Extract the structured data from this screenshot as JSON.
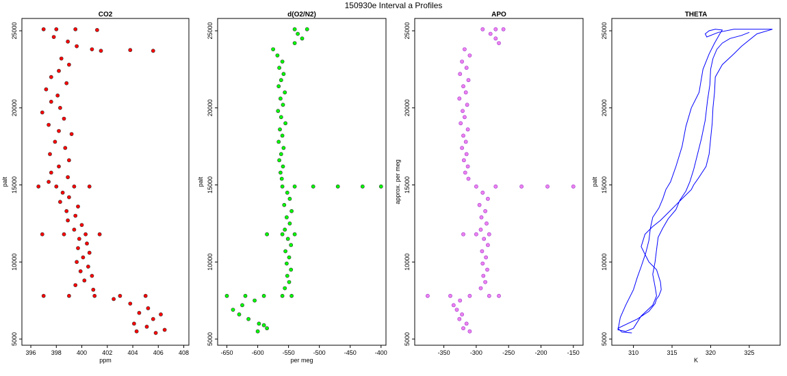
{
  "figure": {
    "title": "150930e   Interval a Profiles"
  },
  "chart_data": [
    {
      "type": "scatter",
      "title": "CO2",
      "xlabel": "ppm",
      "ylabel": "palt",
      "xlim": [
        395.3,
        408.4
      ],
      "ylim": [
        4600,
        25800
      ],
      "xticks": [
        396,
        398,
        400,
        402,
        404,
        406,
        408
      ],
      "yticks": [
        5000,
        10000,
        15000,
        20000,
        25000
      ],
      "marker": "open-circle",
      "color": "#ff0000",
      "edgecolor": "#333333",
      "points": [
        [
          397.0,
          25100
        ],
        [
          398.0,
          25100
        ],
        [
          399.5,
          25100
        ],
        [
          401.2,
          25050
        ],
        [
          397.8,
          24600
        ],
        [
          398.9,
          24300
        ],
        [
          399.6,
          24000
        ],
        [
          400.8,
          23800
        ],
        [
          401.5,
          23700
        ],
        [
          403.8,
          23750
        ],
        [
          405.6,
          23700
        ],
        [
          398.4,
          23200
        ],
        [
          399.0,
          22800
        ],
        [
          398.2,
          22400
        ],
        [
          397.6,
          22000
        ],
        [
          398.8,
          21600
        ],
        [
          397.2,
          21200
        ],
        [
          398.1,
          20800
        ],
        [
          397.6,
          20400
        ],
        [
          398.3,
          20000
        ],
        [
          396.9,
          19700
        ],
        [
          398.6,
          19300
        ],
        [
          397.4,
          18900
        ],
        [
          398.2,
          18500
        ],
        [
          399.2,
          18300
        ],
        [
          397.9,
          17800
        ],
        [
          398.7,
          17400
        ],
        [
          397.5,
          17000
        ],
        [
          399.0,
          16600
        ],
        [
          398.2,
          16200
        ],
        [
          397.6,
          15800
        ],
        [
          398.9,
          15500
        ],
        [
          397.4,
          15200
        ],
        [
          396.6,
          14900
        ],
        [
          398.0,
          14900
        ],
        [
          399.4,
          14900
        ],
        [
          400.6,
          14900
        ],
        [
          398.5,
          14500
        ],
        [
          399.0,
          14200
        ],
        [
          398.3,
          13900
        ],
        [
          399.7,
          13600
        ],
        [
          398.8,
          13300
        ],
        [
          399.5,
          13000
        ],
        [
          398.9,
          12700
        ],
        [
          400.0,
          12400
        ],
        [
          399.4,
          12100
        ],
        [
          396.9,
          11800
        ],
        [
          398.6,
          11800
        ],
        [
          400.3,
          11800
        ],
        [
          401.4,
          11800
        ],
        [
          399.8,
          11500
        ],
        [
          400.4,
          11200
        ],
        [
          399.7,
          10900
        ],
        [
          400.6,
          10600
        ],
        [
          400.1,
          10300
        ],
        [
          399.6,
          10000
        ],
        [
          400.5,
          9700
        ],
        [
          399.9,
          9400
        ],
        [
          400.8,
          9100
        ],
        [
          400.2,
          8800
        ],
        [
          399.5,
          8500
        ],
        [
          400.9,
          8200
        ],
        [
          397.0,
          7800
        ],
        [
          399.0,
          7800
        ],
        [
          401.0,
          7800
        ],
        [
          403.0,
          7800
        ],
        [
          405.0,
          7800
        ],
        [
          402.5,
          7600
        ],
        [
          403.8,
          7300
        ],
        [
          405.2,
          7000
        ],
        [
          404.5,
          6700
        ],
        [
          406.2,
          6600
        ],
        [
          405.6,
          6300
        ],
        [
          404.1,
          6000
        ],
        [
          405.1,
          5800
        ],
        [
          404.3,
          5500
        ],
        [
          405.8,
          5400
        ],
        [
          406.5,
          5600
        ]
      ]
    },
    {
      "type": "scatter",
      "title": "d(O2/N2)",
      "xlabel": "per meg",
      "ylabel": "palt",
      "xlim": [
        -665,
        -392
      ],
      "ylim": [
        4600,
        25800
      ],
      "xticks": [
        -650,
        -600,
        -550,
        -500,
        -450,
        -400
      ],
      "yticks": [
        5000,
        10000,
        15000,
        20000,
        25000
      ],
      "marker": "open-circle",
      "color": "#00ff00",
      "edgecolor": "#333333",
      "points": [
        [
          -540,
          25100
        ],
        [
          -520,
          25100
        ],
        [
          -535,
          24800
        ],
        [
          -528,
          24500
        ],
        [
          -540,
          24200
        ],
        [
          -575,
          23800
        ],
        [
          -568,
          23400
        ],
        [
          -560,
          23000
        ],
        [
          -565,
          22600
        ],
        [
          -558,
          22200
        ],
        [
          -562,
          21800
        ],
        [
          -566,
          21400
        ],
        [
          -556,
          21000
        ],
        [
          -563,
          20600
        ],
        [
          -559,
          20200
        ],
        [
          -567,
          19800
        ],
        [
          -562,
          19400
        ],
        [
          -555,
          19000
        ],
        [
          -564,
          18600
        ],
        [
          -560,
          18200
        ],
        [
          -566,
          17800
        ],
        [
          -558,
          17400
        ],
        [
          -562,
          17000
        ],
        [
          -565,
          16600
        ],
        [
          -559,
          16200
        ],
        [
          -563,
          15800
        ],
        [
          -561,
          15400
        ],
        [
          -560,
          14900
        ],
        [
          -540,
          14900
        ],
        [
          -510,
          14900
        ],
        [
          -470,
          14900
        ],
        [
          -430,
          14900
        ],
        [
          -400,
          14900
        ],
        [
          -552,
          14500
        ],
        [
          -548,
          14100
        ],
        [
          -557,
          13700
        ],
        [
          -545,
          13300
        ],
        [
          -553,
          12900
        ],
        [
          -548,
          12500
        ],
        [
          -556,
          12100
        ],
        [
          -585,
          11800
        ],
        [
          -560,
          11800
        ],
        [
          -540,
          11800
        ],
        [
          -551,
          11500
        ],
        [
          -546,
          11100
        ],
        [
          -555,
          10700
        ],
        [
          -549,
          10300
        ],
        [
          -553,
          9900
        ],
        [
          -546,
          9500
        ],
        [
          -552,
          9100
        ],
        [
          -549,
          8700
        ],
        [
          -556,
          8300
        ],
        [
          -650,
          7800
        ],
        [
          -620,
          7800
        ],
        [
          -590,
          7800
        ],
        [
          -560,
          7800
        ],
        [
          -545,
          7800
        ],
        [
          -605,
          7500
        ],
        [
          -625,
          7200
        ],
        [
          -640,
          6900
        ],
        [
          -630,
          6600
        ],
        [
          -615,
          6300
        ],
        [
          -598,
          6000
        ],
        [
          -585,
          5700
        ],
        [
          -600,
          5500
        ],
        [
          -590,
          5900
        ]
      ]
    },
    {
      "type": "scatter",
      "title": "APO",
      "xlabel": "",
      "ylabel": "approx. per meg",
      "xlim": [
        -395,
        -135
      ],
      "ylim": [
        4600,
        25800
      ],
      "xticks": [
        -350,
        -300,
        -250,
        -200,
        -150
      ],
      "yticks": [
        5000,
        10000,
        15000,
        20000,
        25000
      ],
      "marker": "open-circle",
      "color": "#ee82ee",
      "edgecolor": "#9933cc",
      "points": [
        [
          -290,
          25100
        ],
        [
          -270,
          25100
        ],
        [
          -258,
          25100
        ],
        [
          -278,
          24800
        ],
        [
          -270,
          24500
        ],
        [
          -265,
          24200
        ],
        [
          -318,
          23800
        ],
        [
          -310,
          23400
        ],
        [
          -322,
          23000
        ],
        [
          -315,
          22600
        ],
        [
          -325,
          22200
        ],
        [
          -312,
          21800
        ],
        [
          -320,
          21400
        ],
        [
          -316,
          21000
        ],
        [
          -326,
          20600
        ],
        [
          -314,
          20200
        ],
        [
          -321,
          19800
        ],
        [
          -318,
          19400
        ],
        [
          -324,
          19000
        ],
        [
          -313,
          18600
        ],
        [
          -320,
          18200
        ],
        [
          -316,
          17800
        ],
        [
          -322,
          17400
        ],
        [
          -315,
          17000
        ],
        [
          -319,
          16600
        ],
        [
          -313,
          16200
        ],
        [
          -317,
          15800
        ],
        [
          -312,
          15400
        ],
        [
          -300,
          14900
        ],
        [
          -270,
          14900
        ],
        [
          -230,
          14900
        ],
        [
          -190,
          14900
        ],
        [
          -150,
          14900
        ],
        [
          -290,
          14500
        ],
        [
          -282,
          14100
        ],
        [
          -295,
          13700
        ],
        [
          -286,
          13300
        ],
        [
          -292,
          12900
        ],
        [
          -284,
          12500
        ],
        [
          -293,
          12100
        ],
        [
          -320,
          11800
        ],
        [
          -300,
          11800
        ],
        [
          -280,
          11800
        ],
        [
          -288,
          11500
        ],
        [
          -282,
          11100
        ],
        [
          -291,
          10700
        ],
        [
          -285,
          10300
        ],
        [
          -290,
          9900
        ],
        [
          -283,
          9500
        ],
        [
          -289,
          9100
        ],
        [
          -286,
          8700
        ],
        [
          -293,
          8300
        ],
        [
          -375,
          7800
        ],
        [
          -340,
          7800
        ],
        [
          -310,
          7800
        ],
        [
          -280,
          7800
        ],
        [
          -265,
          7800
        ],
        [
          -325,
          7500
        ],
        [
          -335,
          7200
        ],
        [
          -330,
          6900
        ],
        [
          -322,
          6600
        ],
        [
          -326,
          6300
        ],
        [
          -315,
          6000
        ],
        [
          -320,
          5700
        ],
        [
          -310,
          5500
        ]
      ]
    },
    {
      "type": "line",
      "title": "THETA",
      "xlabel": "K",
      "ylabel": "palt",
      "xlim": [
        307.2,
        329.0
      ],
      "ylim": [
        4600,
        25800
      ],
      "xticks": [
        310,
        315,
        320,
        325
      ],
      "yticks": [
        5000,
        10000,
        15000,
        20000,
        25000
      ],
      "color": "#0000ff",
      "x": [
        309.8,
        308.5,
        308.0,
        310.5,
        312.0,
        312.8,
        313.0,
        313.3,
        313.6,
        313.5,
        313.0,
        312.0,
        311.5,
        311.0,
        311.5,
        312.5,
        313.5,
        314.5,
        315.5,
        316.5,
        317.5,
        317.8,
        318.5,
        319.4,
        319.8,
        320.0,
        320.2,
        320.3,
        320.5,
        320.6,
        321.5,
        323.0,
        324.0,
        326.0,
        328.0,
        323.0,
        321.0,
        319.5,
        319.3,
        319.8,
        320.6,
        321.5,
        321.3,
        320.5,
        319.8,
        319.0,
        318.5,
        317.5,
        316.8,
        316.3,
        315.5,
        314.8,
        314.2,
        313.8,
        313.3,
        312.5,
        312.2,
        312.0,
        311.6,
        311.0,
        310.5,
        310.0,
        309.0,
        308.3,
        308.0,
        309.0,
        310.0,
        311.0,
        312.5,
        313.0,
        312.8,
        312.5,
        312.8,
        313.0,
        313.2,
        313.8,
        314.5,
        315.5,
        316.0,
        316.8,
        317.3,
        317.8,
        318.3,
        318.8,
        319.3,
        319.6,
        319.9,
        320.0,
        320.3,
        320.8,
        321.5,
        322.5,
        324.0,
        325.0
      ],
      "y": [
        5400,
        5450,
        5700,
        6300,
        6800,
        7300,
        7600,
        7800,
        8200,
        8700,
        9500,
        10000,
        10500,
        11000,
        11800,
        12300,
        12700,
        13200,
        13700,
        14200,
        14700,
        15000,
        15500,
        16200,
        17000,
        18000,
        19000,
        20000,
        21000,
        22000,
        22800,
        23500,
        24000,
        24800,
        25100,
        25100,
        24900,
        24600,
        24800,
        25000,
        25100,
        25050,
        24900,
        24200,
        23500,
        22500,
        21000,
        20000,
        18800,
        17500,
        16200,
        15200,
        14700,
        14100,
        13500,
        12900,
        12200,
        11400,
        10600,
        9700,
        9000,
        8200,
        7200,
        6400,
        5600,
        5500,
        5700,
        6500,
        7200,
        7800,
        8400,
        9200,
        10000,
        10800,
        11600,
        12200,
        12800,
        13400,
        14000,
        14600,
        15200,
        16000,
        17000,
        18000,
        19200,
        20500,
        21500,
        22500,
        23200,
        23800,
        24200,
        24500,
        24700,
        24900
      ]
    }
  ]
}
